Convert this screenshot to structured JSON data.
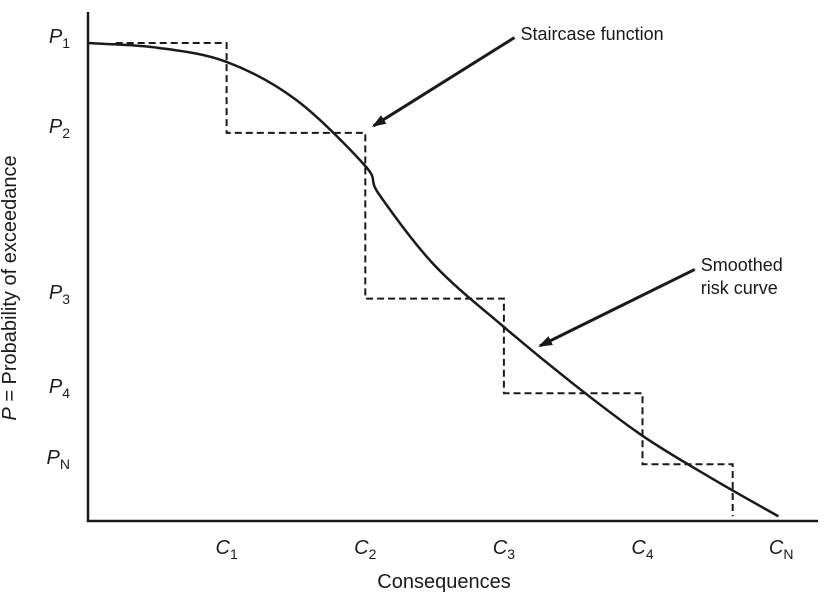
{
  "chart_data": {
    "type": "line",
    "xlabel": "Consequences",
    "ylabel_var": "P",
    "ylabel_rest": " = Probability of exceedance",
    "x_ticks": [
      {
        "base": "C",
        "sub": "1",
        "x": 1
      },
      {
        "base": "C",
        "sub": "2",
        "x": 2
      },
      {
        "base": "C",
        "sub": "3",
        "x": 3
      },
      {
        "base": "C",
        "sub": "4",
        "x": 4
      },
      {
        "base": "C",
        "sub": "N",
        "x": 5
      }
    ],
    "y_ticks": [
      {
        "base": "P",
        "sub": "1",
        "y": 1.0
      },
      {
        "base": "P",
        "sub": "2",
        "y": 0.81
      },
      {
        "base": "P",
        "sub": "3",
        "y": 0.46
      },
      {
        "base": "P",
        "sub": "4",
        "y": 0.26
      },
      {
        "base": "P",
        "sub": "N",
        "y": 0.11
      }
    ],
    "xlim": [
      0,
      5.28
    ],
    "ylim": [
      -0.01,
      1.0
    ],
    "series": [
      {
        "style": "dashed",
        "color": "#1a1a1a",
        "points": [
          [
            0.2,
            1.0
          ],
          [
            1.0,
            1.0
          ],
          [
            1.0,
            0.81
          ],
          [
            2.0,
            0.81
          ],
          [
            2.0,
            0.46
          ],
          [
            3.0,
            0.46
          ],
          [
            3.0,
            0.26
          ],
          [
            4.0,
            0.26
          ],
          [
            4.0,
            0.11
          ],
          [
            4.65,
            0.11
          ],
          [
            4.65,
            0.0
          ]
        ]
      },
      {
        "style": "solid",
        "color": "#1a1a1a",
        "points": [
          [
            0.0,
            1.0
          ],
          [
            0.5,
            0.99
          ],
          [
            1.0,
            0.96
          ],
          [
            1.5,
            0.88
          ],
          [
            2.0,
            0.74
          ],
          [
            2.1,
            0.68
          ],
          [
            2.5,
            0.53
          ],
          [
            3.0,
            0.4
          ],
          [
            3.5,
            0.28
          ],
          [
            4.0,
            0.17
          ],
          [
            4.5,
            0.08
          ],
          [
            4.98,
            0.0
          ]
        ]
      }
    ],
    "annotations": [
      {
        "lines": [
          "Staircase function"
        ],
        "x": 3.12,
        "y": 1.02,
        "arrow_to": [
          2.06,
          0.825
        ]
      },
      {
        "lines": [
          "Smoothed",
          "risk curve"
        ],
        "x": 4.42,
        "y": 0.53,
        "arrow_to": [
          3.26,
          0.36
        ]
      }
    ],
    "grid": false,
    "legend": "none"
  }
}
